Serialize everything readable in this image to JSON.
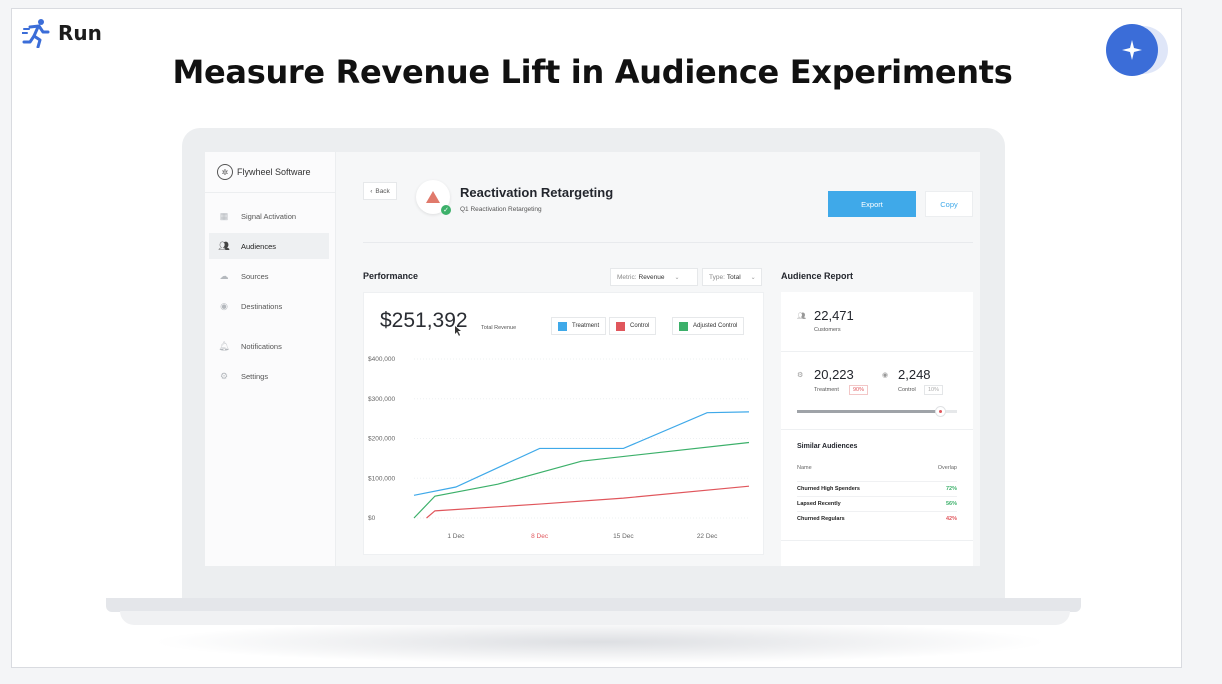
{
  "slide": {
    "run_label": "Run",
    "headline": "Measure Revenue Lift in Audience Experiments"
  },
  "app": {
    "brand": "Flywheel Software",
    "nav": [
      {
        "label": "Signal Activation",
        "icon": "grid-icon"
      },
      {
        "label": "Audiences",
        "icon": "people-icon",
        "active": true
      },
      {
        "label": "Sources",
        "icon": "cloud-upload-icon"
      },
      {
        "label": "Destinations",
        "icon": "compass-icon"
      },
      {
        "label": "Notifications",
        "icon": "bell-icon"
      },
      {
        "label": "Settings",
        "icon": "gear-icon"
      }
    ],
    "back_label": "Back",
    "campaign_title": "Reactivation Retargeting",
    "campaign_subtitle": "Q1 Reactivation Retargeting",
    "export_label": "Export",
    "copy_label": "Copy",
    "accent_color": "#3fa9e9"
  },
  "performance": {
    "title": "Performance",
    "metric_prefix": "Metric:",
    "metric_value": "Revenue",
    "type_prefix": "Type:",
    "type_value": "Total",
    "total_value": "$251,392",
    "total_label": "Total Revenue"
  },
  "chart_data": {
    "type": "line",
    "x_ticks": [
      "1 Dec",
      "8 Dec",
      "15 Dec",
      "22 Dec"
    ],
    "highlight_x_tick": "8 Dec",
    "y_ticks": [
      "$400,000",
      "$300,000",
      "$200,000",
      "$100,000",
      "$0"
    ],
    "ylim": [
      0,
      400000
    ],
    "xlim": [
      0,
      8
    ],
    "series": [
      {
        "name": "Treatment",
        "color": "#3fa9e9",
        "points": [
          [
            0,
            57000
          ],
          [
            1,
            78000
          ],
          [
            3,
            175000
          ],
          [
            5,
            175000
          ],
          [
            7,
            265000
          ],
          [
            8,
            267000
          ]
        ]
      },
      {
        "name": "Control",
        "color": "#e0565c",
        "points": [
          [
            0.3,
            0
          ],
          [
            0.5,
            18000
          ],
          [
            3,
            35000
          ],
          [
            5,
            50000
          ],
          [
            8,
            80000
          ]
        ]
      },
      {
        "name": "Adjusted Control",
        "color": "#3cb06a",
        "points": [
          [
            0,
            0
          ],
          [
            0.5,
            55000
          ],
          [
            2,
            85000
          ],
          [
            4,
            143000
          ],
          [
            8,
            190000
          ]
        ]
      }
    ],
    "grid": true
  },
  "audience_report": {
    "title": "Audience Report",
    "customers_value": "22,471",
    "customers_label": "Customers",
    "treatment_value": "20,223",
    "treatment_label": "Treatment",
    "treatment_pct": "90%",
    "control_value": "2,248",
    "control_label": "Control",
    "control_pct": "10%",
    "split_fraction": 0.9,
    "similar_title": "Similar Audiences",
    "col_name": "Name",
    "col_overlap": "Overlap",
    "similar": [
      {
        "name": "Churned High Spenders",
        "overlap": "72%",
        "color": "#3cb06a"
      },
      {
        "name": "Lapsed Recently",
        "overlap": "56%",
        "color": "#3cb06a"
      },
      {
        "name": "Churned Regulars",
        "overlap": "42%",
        "color": "#e0565c"
      }
    ]
  }
}
